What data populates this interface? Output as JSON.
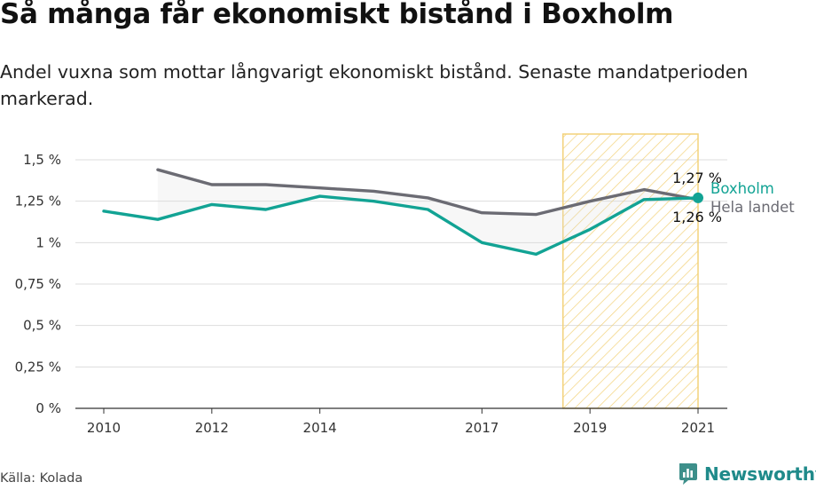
{
  "header": {
    "title": "Så många får ekonomiskt bistånd i Boxholm",
    "subtitle": "Andel vuxna som mottar långvarigt ekonomiskt bistånd. Senaste mandatperioden markerad."
  },
  "footer": {
    "source": "Källa: Kolada",
    "brand": "Newsworthy"
  },
  "colors": {
    "boxholm": "#12a394",
    "national": "#6b6b73",
    "highlight": "#f3d27a",
    "grid": "#dddddd"
  },
  "chart_data": {
    "type": "line",
    "title": "Så många får ekonomiskt bistånd i Boxholm",
    "ylim": [
      0,
      1.5
    ],
    "xlim": [
      2010,
      2021
    ],
    "y_ticks": [
      {
        "value": 0,
        "label": "0 %"
      },
      {
        "value": 0.25,
        "label": "0,25 %"
      },
      {
        "value": 0.5,
        "label": "0,5 %"
      },
      {
        "value": 0.75,
        "label": "0,75 %"
      },
      {
        "value": 1,
        "label": "1 %"
      },
      {
        "value": 1.25,
        "label": "1,25 %"
      },
      {
        "value": 1.5,
        "label": "1,5 %"
      }
    ],
    "x_ticks": [
      {
        "value": 2010,
        "label": "2010"
      },
      {
        "value": 2012,
        "label": "2012"
      },
      {
        "value": 2014,
        "label": "2014"
      },
      {
        "value": 2017,
        "label": "2017"
      },
      {
        "value": 2019,
        "label": "2019"
      },
      {
        "value": 2021,
        "label": "2021"
      }
    ],
    "highlight_period": [
      2018.5,
      2021
    ],
    "grid": true,
    "series": [
      {
        "name": "Boxholm",
        "x": [
          2010,
          2011,
          2012,
          2013,
          2014,
          2015,
          2016,
          2017,
          2018,
          2019,
          2020,
          2021
        ],
        "values": [
          1.19,
          1.14,
          1.23,
          1.2,
          1.28,
          1.25,
          1.2,
          1.0,
          0.93,
          1.08,
          1.26,
          1.27
        ],
        "end_label": "1,27 %"
      },
      {
        "name": "Hela landet",
        "x": [
          2011,
          2012,
          2013,
          2014,
          2015,
          2016,
          2017,
          2018,
          2019,
          2020,
          2021
        ],
        "values": [
          1.44,
          1.35,
          1.35,
          1.33,
          1.31,
          1.27,
          1.18,
          1.17,
          1.25,
          1.32,
          1.26
        ],
        "end_label": "1,26 %"
      }
    ]
  }
}
